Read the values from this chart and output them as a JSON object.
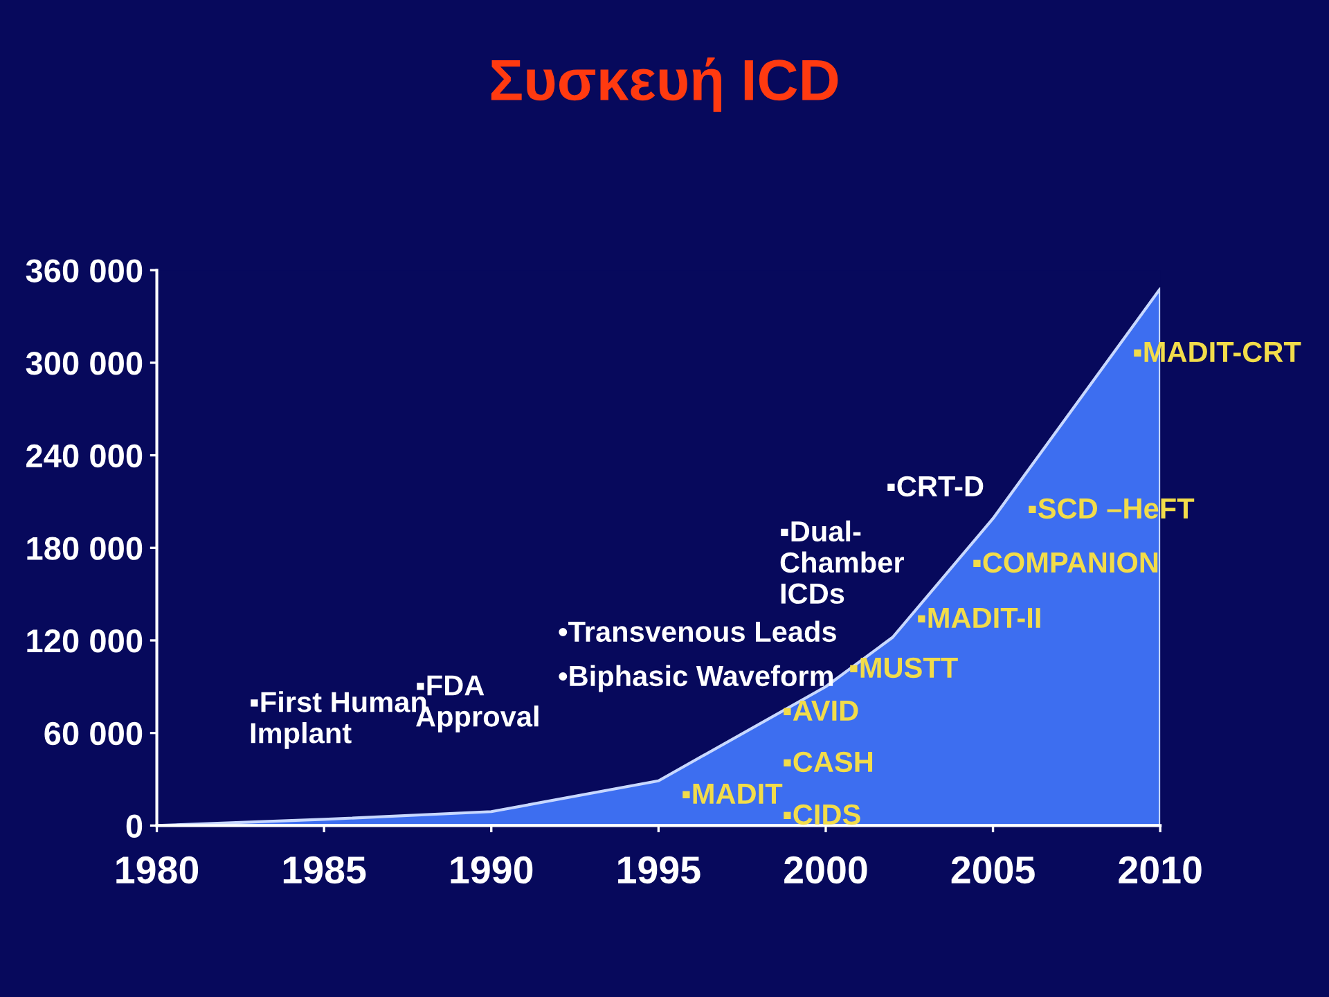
{
  "chart_data": {
    "type": "area",
    "title": "Συσκευή ICD",
    "x": [
      1980,
      1985,
      1990,
      1995,
      2000,
      2002,
      2005,
      2010
    ],
    "series": [
      {
        "color": "#3d6ef0",
        "values": [
          0,
          4000,
          9000,
          29000,
          90000,
          122000,
          199000,
          348000
        ]
      }
    ],
    "xlim": [
      1980,
      2010
    ],
    "xticks": [
      1980,
      1985,
      1990,
      1995,
      2000,
      2005,
      2010
    ],
    "ylim": [
      0,
      360000
    ],
    "yticks": [
      {
        "value": 0,
        "label": "0"
      },
      {
        "value": 60000,
        "label": "60 000"
      },
      {
        "value": 120000,
        "label": "120 000"
      },
      {
        "value": 180000,
        "label": "180 000"
      },
      {
        "value": 240000,
        "label": "240 000"
      },
      {
        "value": 300000,
        "label": "300 000"
      },
      {
        "value": 360000,
        "label": "360 000"
      }
    ],
    "grid": false,
    "legend": false,
    "annotations": [
      "▪First Human\nImplant",
      "▪FDA\nApproval",
      "•Transvenous Leads",
      "•Biphasic Waveform",
      "▪Dual-\nChamber\nICDs",
      "▪CRT-D",
      "▪MADIT",
      "▪AVID",
      "▪CASH",
      "▪CIDS",
      "▪MUSTT",
      "▪MADIT-II",
      "▪COMPANION",
      "▪SCD –HeFT",
      "▪MADIT-CRT"
    ]
  }
}
